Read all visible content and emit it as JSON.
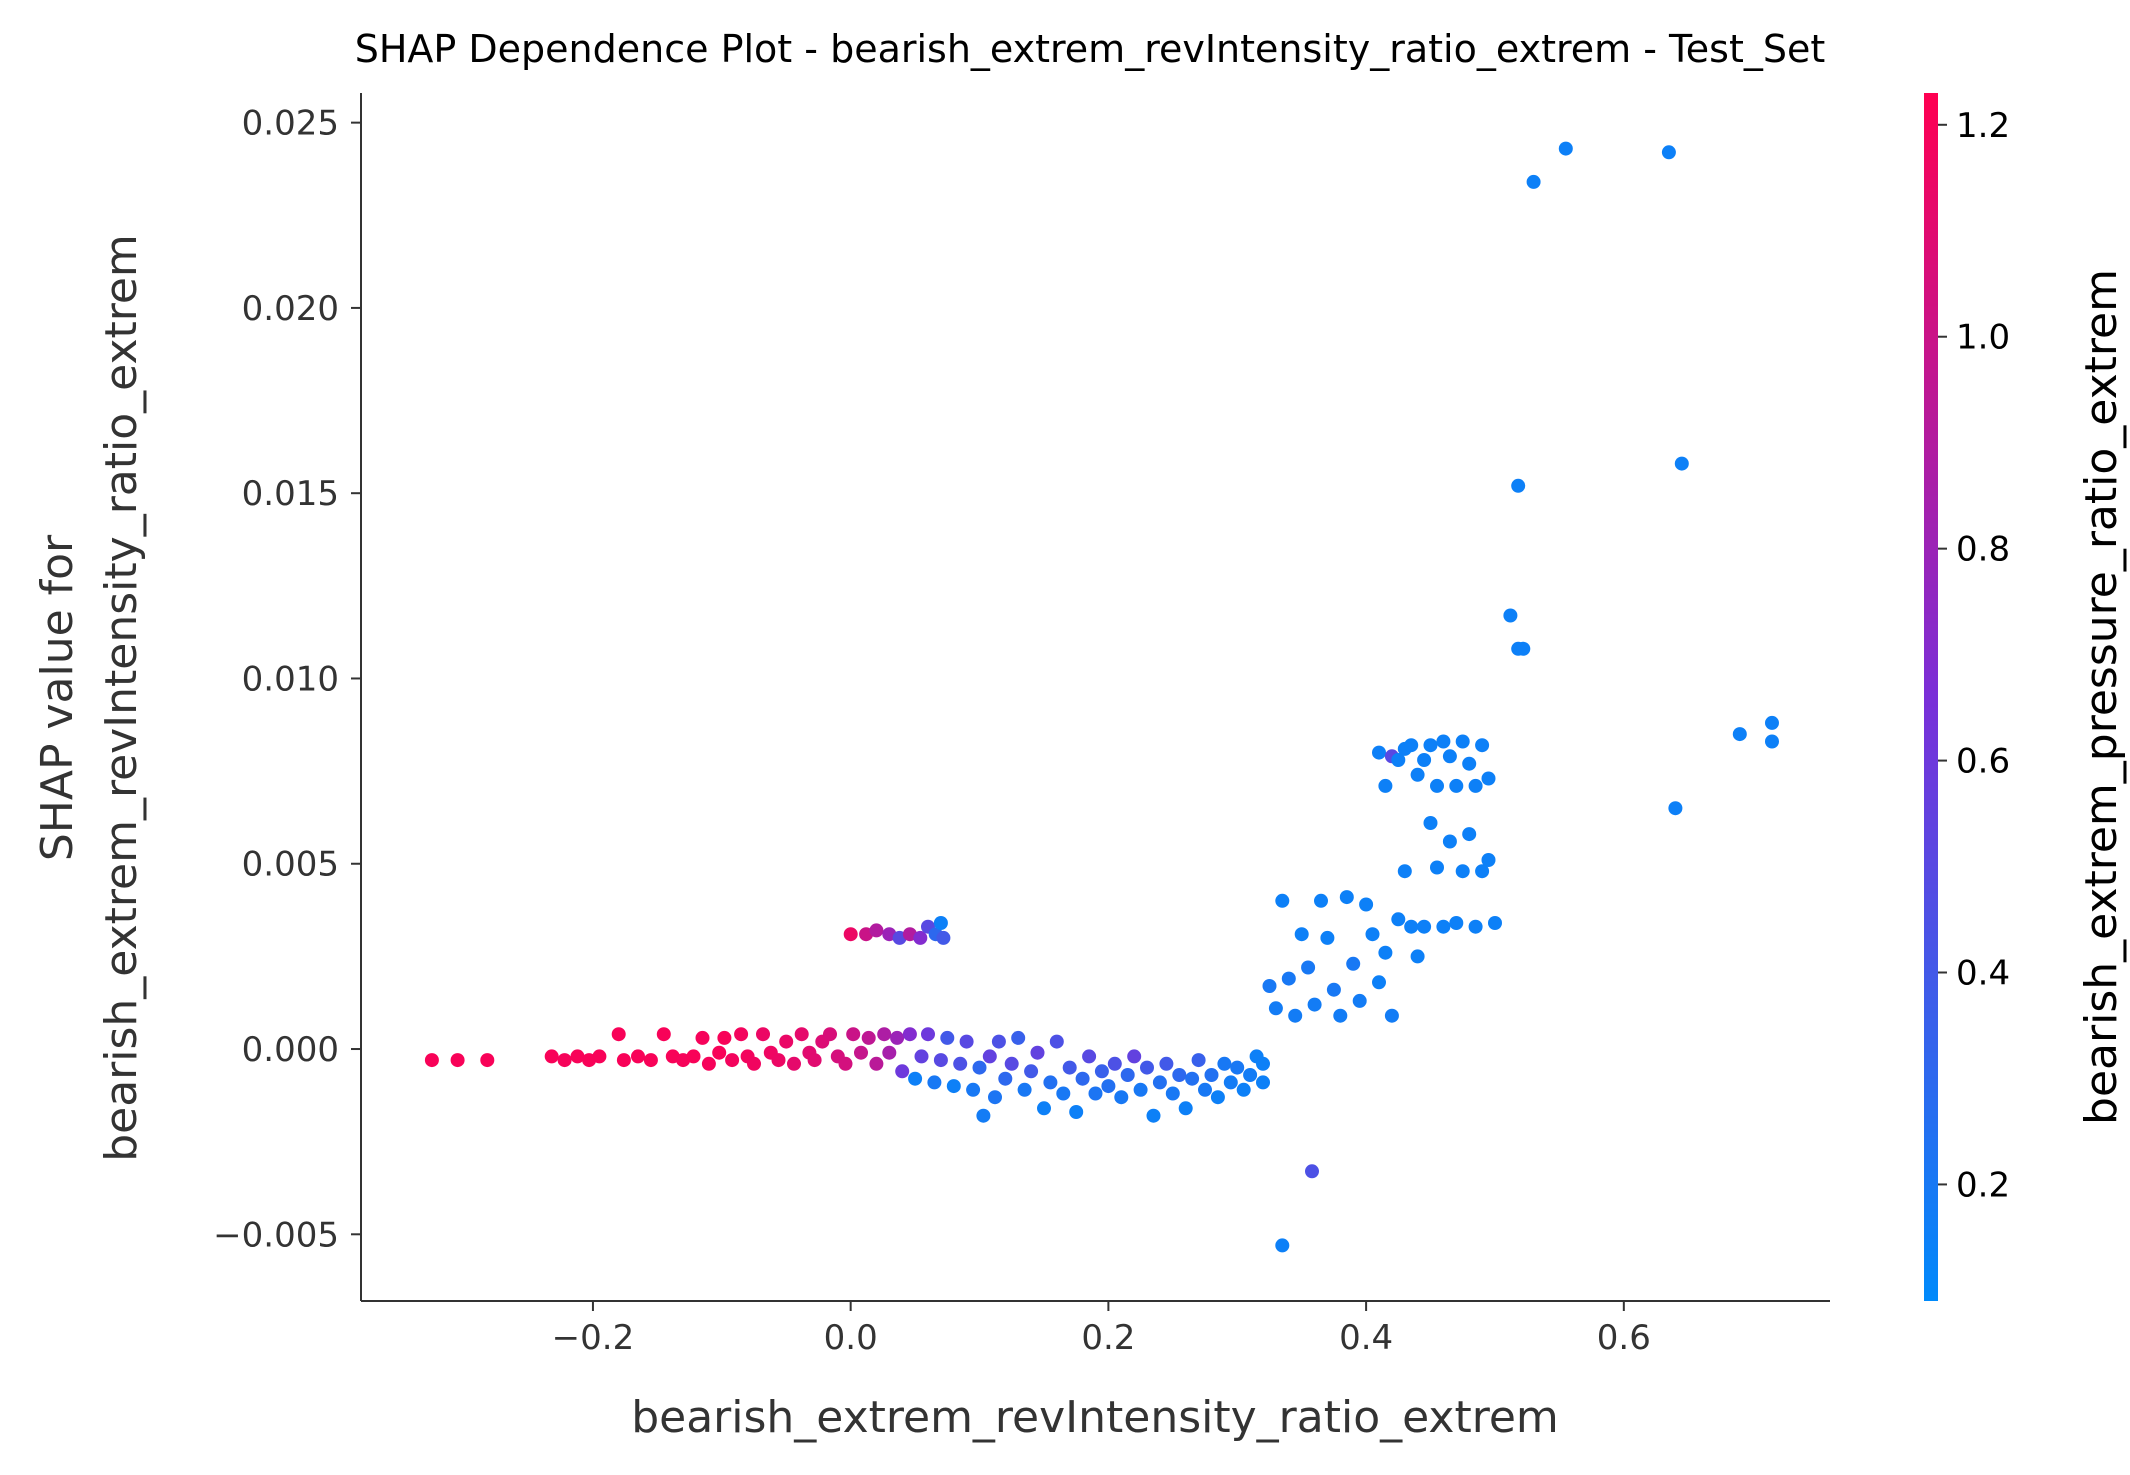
{
  "chart_data": {
    "type": "scatter",
    "title": "SHAP Dependence Plot - bearish_extrem_revIntensity_ratio_extrem - Test_Set",
    "xlabel": "bearish_extrem_revIntensity_ratio_extrem",
    "ylabel_lines": [
      "SHAP value for",
      "bearish_extrem_revIntensity_ratio_extrem"
    ],
    "xlim": [
      -0.38,
      0.76
    ],
    "ylim": [
      -0.0068,
      0.0258
    ],
    "xticks": [
      -0.2,
      0.0,
      0.2,
      0.4,
      0.6
    ],
    "xtick_labels": [
      "−0.2",
      "0.0",
      "0.2",
      "0.4",
      "0.6"
    ],
    "yticks": [
      -0.005,
      0.0,
      0.005,
      0.01,
      0.015,
      0.02,
      0.025
    ],
    "ytick_labels": [
      "−0.005",
      "0.000",
      "0.005",
      "0.010",
      "0.015",
      "0.020",
      "0.025"
    ],
    "colorbar": {
      "label": "bearish_extrem_pressure_ratio_extrem",
      "range": [
        0.09,
        1.23
      ],
      "ticks": [
        0.2,
        0.4,
        0.6,
        0.8,
        1.0,
        1.2
      ],
      "tick_labels": [
        "0.2",
        "0.4",
        "0.6",
        "0.8",
        "1.0",
        "1.2"
      ],
      "colors": [
        "#008afb",
        "#7a2fd8",
        "#ff0051"
      ]
    },
    "grid": false,
    "legend": "none",
    "points": [
      [
        -0.325,
        -0.0003,
        1.2
      ],
      [
        -0.305,
        -0.0003,
        1.2
      ],
      [
        -0.282,
        -0.0003,
        1.2
      ],
      [
        -0.232,
        -0.0002,
        1.2
      ],
      [
        -0.222,
        -0.0003,
        1.19
      ],
      [
        -0.212,
        -0.0002,
        1.2
      ],
      [
        -0.203,
        -0.0003,
        1.2
      ],
      [
        -0.195,
        -0.0002,
        1.2
      ],
      [
        -0.18,
        0.0004,
        1.2
      ],
      [
        -0.176,
        -0.0003,
        1.2
      ],
      [
        -0.165,
        -0.0002,
        1.2
      ],
      [
        -0.155,
        -0.0003,
        1.2
      ],
      [
        -0.145,
        0.0004,
        1.2
      ],
      [
        -0.138,
        -0.0002,
        1.2
      ],
      [
        -0.13,
        -0.0003,
        1.19
      ],
      [
        -0.122,
        -0.0002,
        1.2
      ],
      [
        -0.115,
        0.0003,
        1.19
      ],
      [
        -0.11,
        -0.0004,
        1.19
      ],
      [
        -0.102,
        -0.0001,
        1.2
      ],
      [
        -0.098,
        0.0003,
        1.2
      ],
      [
        -0.092,
        -0.0003,
        1.18
      ],
      [
        -0.085,
        0.0004,
        1.18
      ],
      [
        -0.08,
        -0.0002,
        1.18
      ],
      [
        -0.075,
        -0.0004,
        1.17
      ],
      [
        -0.068,
        0.0004,
        1.15
      ],
      [
        -0.062,
        -0.0001,
        1.16
      ],
      [
        -0.056,
        -0.0003,
        1.15
      ],
      [
        -0.05,
        0.0002,
        1.14
      ],
      [
        -0.044,
        -0.0004,
        1.12
      ],
      [
        -0.038,
        0.0004,
        1.12
      ],
      [
        -0.032,
        -0.0001,
        1.1
      ],
      [
        -0.028,
        -0.0003,
        1.1
      ],
      [
        -0.022,
        0.0002,
        1.08
      ],
      [
        -0.016,
        0.0004,
        1.06
      ],
      [
        -0.01,
        -0.0002,
        1.05
      ],
      [
        -0.004,
        -0.0004,
        1.04
      ],
      [
        0.002,
        0.0004,
        1.0
      ],
      [
        0.008,
        -0.0001,
        0.98
      ],
      [
        0.014,
        0.0003,
        0.95
      ],
      [
        0.02,
        -0.0004,
        0.93
      ],
      [
        0.026,
        0.0004,
        0.88
      ],
      [
        0.03,
        -0.0001,
        0.85
      ],
      [
        0.036,
        0.0003,
        0.8
      ],
      [
        0.04,
        -0.0006,
        0.6
      ],
      [
        0.046,
        0.0004,
        0.7
      ],
      [
        0.05,
        -0.0008,
        0.15
      ],
      [
        0.055,
        -0.0002,
        0.55
      ],
      [
        0.06,
        0.0004,
        0.6
      ],
      [
        0.065,
        -0.0009,
        0.2
      ],
      [
        0.07,
        -0.0003,
        0.5
      ],
      [
        0.075,
        0.0003,
        0.4
      ],
      [
        0.08,
        -0.001,
        0.15
      ],
      [
        0.085,
        -0.0004,
        0.45
      ],
      [
        0.09,
        0.0002,
        0.5
      ],
      [
        0.095,
        -0.0011,
        0.2
      ],
      [
        0.1,
        -0.0005,
        0.3
      ],
      [
        0.103,
        -0.0018,
        0.18
      ],
      [
        0.108,
        -0.0002,
        0.55
      ],
      [
        0.112,
        -0.0013,
        0.22
      ],
      [
        0.115,
        0.0002,
        0.45
      ],
      [
        0.12,
        -0.0008,
        0.3
      ],
      [
        0.125,
        -0.0004,
        0.5
      ],
      [
        0.13,
        0.0003,
        0.35
      ],
      [
        0.135,
        -0.0011,
        0.2
      ],
      [
        0.14,
        -0.0006,
        0.4
      ],
      [
        0.145,
        -0.0001,
        0.55
      ],
      [
        0.15,
        -0.0016,
        0.15
      ],
      [
        0.155,
        -0.0009,
        0.25
      ],
      [
        0.16,
        0.0002,
        0.45
      ],
      [
        0.165,
        -0.0012,
        0.2
      ],
      [
        0.17,
        -0.0005,
        0.4
      ],
      [
        0.175,
        -0.0017,
        0.15
      ],
      [
        0.18,
        -0.0008,
        0.3
      ],
      [
        0.185,
        -0.0002,
        0.5
      ],
      [
        0.19,
        -0.0012,
        0.22
      ],
      [
        0.195,
        -0.0006,
        0.35
      ],
      [
        0.2,
        -0.001,
        0.25
      ],
      [
        0.205,
        -0.0004,
        0.45
      ],
      [
        0.21,
        -0.0013,
        0.2
      ],
      [
        0.215,
        -0.0007,
        0.3
      ],
      [
        0.22,
        -0.0002,
        0.55
      ],
      [
        0.225,
        -0.0011,
        0.2
      ],
      [
        0.23,
        -0.0005,
        0.4
      ],
      [
        0.235,
        -0.0018,
        0.15
      ],
      [
        0.24,
        -0.0009,
        0.25
      ],
      [
        0.245,
        -0.0004,
        0.4
      ],
      [
        0.25,
        -0.0012,
        0.2
      ],
      [
        0.255,
        -0.0007,
        0.3
      ],
      [
        0.26,
        -0.0016,
        0.15
      ],
      [
        0.265,
        -0.0008,
        0.25
      ],
      [
        0.27,
        -0.0003,
        0.35
      ],
      [
        0.275,
        -0.0011,
        0.2
      ],
      [
        0.28,
        -0.0007,
        0.25
      ],
      [
        0.285,
        -0.0013,
        0.15
      ],
      [
        0.29,
        -0.0004,
        0.2
      ],
      [
        0.295,
        -0.0009,
        0.18
      ],
      [
        0.3,
        -0.0005,
        0.2
      ],
      [
        0.305,
        -0.0011,
        0.15
      ],
      [
        0.31,
        -0.0007,
        0.18
      ],
      [
        0.315,
        -0.0002,
        0.15
      ],
      [
        0.32,
        -0.0009,
        0.15
      ],
      [
        0.32,
        -0.0004,
        0.15
      ],
      [
        0.0,
        0.0031,
        1.15
      ],
      [
        0.012,
        0.0031,
        1.0
      ],
      [
        0.02,
        0.0032,
        0.9
      ],
      [
        0.03,
        0.0031,
        0.8
      ],
      [
        0.038,
        0.003,
        0.5
      ],
      [
        0.046,
        0.0031,
        0.9
      ],
      [
        0.054,
        0.003,
        0.7
      ],
      [
        0.06,
        0.0033,
        0.5
      ],
      [
        0.066,
        0.0031,
        0.3
      ],
      [
        0.07,
        0.0034,
        0.15
      ],
      [
        0.072,
        0.003,
        0.4
      ],
      [
        0.325,
        0.0017,
        0.2
      ],
      [
        0.33,
        0.0011,
        0.18
      ],
      [
        0.335,
        0.004,
        0.15
      ],
      [
        0.34,
        0.0019,
        0.2
      ],
      [
        0.345,
        0.0009,
        0.18
      ],
      [
        0.35,
        0.0031,
        0.15
      ],
      [
        0.355,
        0.0022,
        0.2
      ],
      [
        0.36,
        0.0012,
        0.18
      ],
      [
        0.365,
        0.004,
        0.15
      ],
      [
        0.37,
        0.003,
        0.15
      ],
      [
        0.375,
        0.0016,
        0.2
      ],
      [
        0.38,
        0.0009,
        0.18
      ],
      [
        0.385,
        0.0041,
        0.15
      ],
      [
        0.39,
        0.0023,
        0.2
      ],
      [
        0.395,
        0.0013,
        0.18
      ],
      [
        0.4,
        0.0039,
        0.15
      ],
      [
        0.405,
        0.0031,
        0.15
      ],
      [
        0.41,
        0.0018,
        0.15
      ],
      [
        0.415,
        0.0026,
        0.15
      ],
      [
        0.42,
        0.0009,
        0.18
      ],
      [
        0.425,
        0.0035,
        0.15
      ],
      [
        0.43,
        0.0048,
        0.15
      ],
      [
        0.435,
        0.0033,
        0.15
      ],
      [
        0.44,
        0.0025,
        0.15
      ],
      [
        0.445,
        0.0033,
        0.15
      ],
      [
        0.45,
        0.0061,
        0.15
      ],
      [
        0.455,
        0.0049,
        0.15
      ],
      [
        0.46,
        0.0033,
        0.15
      ],
      [
        0.465,
        0.0056,
        0.15
      ],
      [
        0.47,
        0.0034,
        0.15
      ],
      [
        0.475,
        0.0048,
        0.15
      ],
      [
        0.48,
        0.0058,
        0.15
      ],
      [
        0.485,
        0.0033,
        0.15
      ],
      [
        0.49,
        0.0048,
        0.15
      ],
      [
        0.495,
        0.0051,
        0.15
      ],
      [
        0.5,
        0.0034,
        0.15
      ],
      [
        0.41,
        0.008,
        0.15
      ],
      [
        0.415,
        0.0071,
        0.15
      ],
      [
        0.42,
        0.0079,
        0.5
      ],
      [
        0.425,
        0.0078,
        0.15
      ],
      [
        0.43,
        0.0081,
        0.15
      ],
      [
        0.435,
        0.0082,
        0.15
      ],
      [
        0.44,
        0.0074,
        0.15
      ],
      [
        0.445,
        0.0078,
        0.15
      ],
      [
        0.45,
        0.0082,
        0.15
      ],
      [
        0.455,
        0.0071,
        0.15
      ],
      [
        0.46,
        0.0083,
        0.15
      ],
      [
        0.465,
        0.0079,
        0.15
      ],
      [
        0.47,
        0.0071,
        0.15
      ],
      [
        0.475,
        0.0083,
        0.15
      ],
      [
        0.48,
        0.0077,
        0.15
      ],
      [
        0.485,
        0.0071,
        0.15
      ],
      [
        0.49,
        0.0082,
        0.15
      ],
      [
        0.495,
        0.0073,
        0.15
      ],
      [
        0.512,
        0.0117,
        0.15
      ],
      [
        0.518,
        0.0108,
        0.15
      ],
      [
        0.522,
        0.0108,
        0.15
      ],
      [
        0.518,
        0.0152,
        0.15
      ],
      [
        0.53,
        0.0234,
        0.15
      ],
      [
        0.555,
        0.0243,
        0.15
      ],
      [
        0.635,
        0.0242,
        0.15
      ],
      [
        0.645,
        0.0158,
        0.15
      ],
      [
        0.64,
        0.0065,
        0.15
      ],
      [
        0.69,
        0.0085,
        0.15
      ],
      [
        0.715,
        0.0088,
        0.15
      ],
      [
        0.715,
        0.0083,
        0.15
      ],
      [
        0.335,
        -0.0053,
        0.15
      ],
      [
        0.358,
        -0.0033,
        0.45
      ]
    ]
  }
}
